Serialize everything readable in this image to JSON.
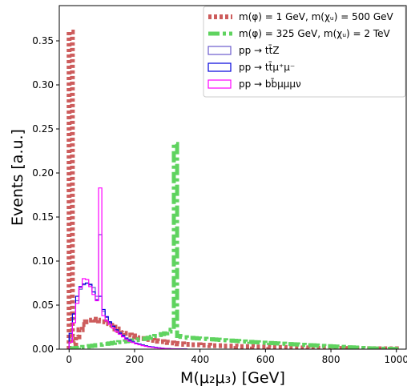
{
  "chart_data": {
    "type": "histogram",
    "xlabel": "M(μ₂μ₃) [GeV]",
    "ylabel": "Events [a.u.]",
    "xlim": [
      -30,
      1030
    ],
    "ylim": [
      0,
      0.39
    ],
    "x_ticks": [
      0,
      200,
      400,
      600,
      800,
      1000
    ],
    "y_ticks": [
      0.0,
      0.05,
      0.1,
      0.15,
      0.2,
      0.25,
      0.3,
      0.35
    ],
    "x_tick_labels": [
      "0",
      "200",
      "400",
      "600",
      "800",
      "1000"
    ],
    "y_tick_labels": [
      "0.00",
      "0.05",
      "0.10",
      "0.15",
      "0.20",
      "0.25",
      "0.30",
      "0.35"
    ],
    "legend_position": "top-right",
    "series": [
      {
        "name": "m(φ) = 1 GeV, m(χᵤ) = 500 GeV",
        "color": "#cd5c5c",
        "style": "dotted-thick",
        "bin_width": 10,
        "x_start": 0,
        "values": [
          0.36,
          0.006,
          0.014,
          0.022,
          0.028,
          0.031,
          0.033,
          0.034,
          0.033,
          0.032,
          0.031,
          0.029,
          0.027,
          0.025,
          0.023,
          0.021,
          0.019,
          0.018,
          0.016,
          0.015,
          0.014,
          0.013,
          0.012,
          0.011,
          0.011,
          0.01,
          0.0095,
          0.009,
          0.0085,
          0.008,
          0.0075,
          0.007,
          0.0065,
          0.006,
          0.006,
          0.0055,
          0.0055,
          0.005,
          0.005,
          0.005,
          0.0045,
          0.0045,
          0.0045,
          0.004,
          0.004,
          0.004,
          0.004,
          0.0035,
          0.0035,
          0.0035,
          0.0035,
          0.003,
          0.003,
          0.003,
          0.003,
          0.003,
          0.0025,
          0.0025,
          0.0025,
          0.0025,
          0.0025,
          0.002,
          0.002,
          0.002,
          0.002,
          0.002,
          0.002,
          0.0015,
          0.0015,
          0.0015,
          0.0015,
          0.0015,
          0.0015,
          0.001,
          0.001,
          0.001,
          0.001,
          0.001,
          0.001,
          0.001,
          0.0008,
          0.0008,
          0.0008,
          0.0008,
          0.0008,
          0.0007,
          0.0007,
          0.0007,
          0.0007,
          0.0006,
          0.0006,
          0.0006,
          0.0006,
          0.0005,
          0.0005,
          0.0005,
          0.0005,
          0.0005,
          0.0004,
          0.0004
        ]
      },
      {
        "name": "m(φ) = 325 GeV, m(χᵤ) = 2 TeV",
        "color": "#5fd35f",
        "style": "dashdot-thick",
        "bin_width": 10,
        "x_start": 0,
        "values": [
          0.0,
          0.001,
          0.0015,
          0.002,
          0.0025,
          0.003,
          0.0035,
          0.004,
          0.0045,
          0.005,
          0.0055,
          0.006,
          0.0065,
          0.007,
          0.0075,
          0.008,
          0.0085,
          0.009,
          0.0095,
          0.01,
          0.0105,
          0.011,
          0.0115,
          0.012,
          0.013,
          0.014,
          0.015,
          0.016,
          0.017,
          0.018,
          0.02,
          0.022,
          0.233,
          0.015,
          0.014,
          0.0135,
          0.013,
          0.0128,
          0.0125,
          0.0122,
          0.012,
          0.0118,
          0.0115,
          0.0112,
          0.011,
          0.0108,
          0.0105,
          0.0102,
          0.01,
          0.0098,
          0.0095,
          0.0093,
          0.009,
          0.0088,
          0.0085,
          0.0083,
          0.008,
          0.0078,
          0.0076,
          0.0074,
          0.0072,
          0.007,
          0.0068,
          0.0066,
          0.0064,
          0.0062,
          0.006,
          0.0058,
          0.0056,
          0.0054,
          0.0052,
          0.005,
          0.0048,
          0.0046,
          0.0044,
          0.0042,
          0.004,
          0.0038,
          0.0036,
          0.0034,
          0.0032,
          0.003,
          0.0028,
          0.0026,
          0.0024,
          0.0022,
          0.002,
          0.0018,
          0.0016,
          0.0014,
          0.0012,
          0.001,
          0.0009,
          0.0008,
          0.0007,
          0.0006,
          0.0005,
          0.0004,
          0.0003,
          0.0002
        ]
      },
      {
        "name": "pp → tt̄Z",
        "color": "#6a5acd",
        "style": "step",
        "bin_width": 10,
        "x_start": 0,
        "values": [
          0.012,
          0.035,
          0.055,
          0.068,
          0.073,
          0.075,
          0.074,
          0.07,
          0.06,
          0.13,
          0.043,
          0.036,
          0.03,
          0.026,
          0.022,
          0.019,
          0.016,
          0.013,
          0.011,
          0.009,
          0.007,
          0.006,
          0.005,
          0.004,
          0.003,
          0.0025,
          0.002,
          0.0015,
          0.001,
          0.0008,
          0.0006,
          0.0005,
          0.0004,
          0.0003,
          0.0002,
          0.0001
        ]
      },
      {
        "name": "pp → tt̄μ⁺μ⁻",
        "color": "#0000dd",
        "style": "step",
        "bin_width": 10,
        "x_start": 0,
        "values": [
          0.018,
          0.04,
          0.06,
          0.071,
          0.074,
          0.075,
          0.073,
          0.065,
          0.056,
          0.06,
          0.045,
          0.037,
          0.031,
          0.026,
          0.022,
          0.018,
          0.015,
          0.012,
          0.01,
          0.008,
          0.0065,
          0.0055,
          0.0045,
          0.0035,
          0.003,
          0.0025,
          0.002,
          0.0015,
          0.001,
          0.0008,
          0.0006,
          0.0004,
          0.0003,
          0.0002,
          0.0001,
          0.0001
        ]
      },
      {
        "name": "pp → bb̄μμμν",
        "color": "#ff00ff",
        "style": "step",
        "bin_width": 10,
        "x_start": 0,
        "values": [
          0.008,
          0.03,
          0.052,
          0.07,
          0.08,
          0.079,
          0.071,
          0.062,
          0.055,
          0.183,
          0.038,
          0.032,
          0.028,
          0.024,
          0.02,
          0.017,
          0.014,
          0.011,
          0.009,
          0.0075,
          0.006,
          0.005,
          0.004,
          0.0032,
          0.0025,
          0.002,
          0.0015,
          0.0012,
          0.0009,
          0.0007,
          0.0005,
          0.0004,
          0.0003,
          0.0002,
          0.0001,
          0.0001
        ]
      }
    ]
  }
}
